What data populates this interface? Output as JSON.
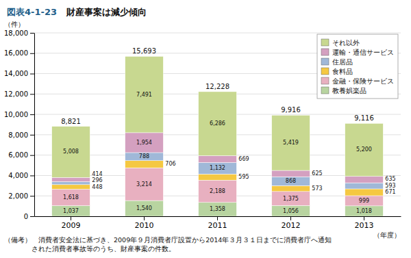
{
  "chart_data": {
    "type": "bar",
    "stacked": true,
    "title": "財産事案は減少傾向",
    "annotations": [
      "図表4-1-23",
      "（備考）　消費者安全法に基づき、2009年９月消費者庁設置から2014年３月３１日までに消費者庁へ通知\n　　　　された消費者事故等のうち、財産事案の件数。"
    ],
    "xlabel": "（年度）",
    "ylabel": "（件）",
    "categories": [
      "2009",
      "2010",
      "2011",
      "2012",
      "2013"
    ],
    "series": [
      {
        "name": "教養娯楽品",
        "color": "#b8d4a0",
        "values": [
          1037,
          1540,
          1358,
          1056,
          1018
        ],
        "value_labels": [
          "1,037",
          "1,540",
          "1,358",
          "1,056",
          "1,018"
        ]
      },
      {
        "name": "金融・保険サービス",
        "color": "#e8b0c0",
        "values": [
          1618,
          3214,
          2188,
          1375,
          999
        ],
        "value_labels": [
          "1,618",
          "3,214",
          "2,188",
          "1,375",
          "999"
        ]
      },
      {
        "name": "食料品",
        "color": "#f5c842",
        "values": [
          448,
          706,
          595,
          573,
          671
        ],
        "value_labels": [
          "448",
          "706",
          "595",
          "573",
          "671"
        ]
      },
      {
        "name": "住居品",
        "color": "#a0b8d8",
        "values": [
          296,
          788,
          1132,
          868,
          593
        ],
        "value_labels": [
          "296",
          "788",
          "1,132",
          "868",
          "593"
        ]
      },
      {
        "name": "運輸・通信サービス",
        "color": "#d4a0c0",
        "values": [
          414,
          1954,
          669,
          625,
          635
        ],
        "value_labels": [
          "414",
          "1,954",
          "669",
          "625",
          "635"
        ]
      },
      {
        "name": "それ以外",
        "color": "#c8d890",
        "values": [
          5008,
          7491,
          6286,
          5419,
          5200
        ],
        "value_labels": [
          "5,008",
          "7,491",
          "6,286",
          "5,419",
          "5,200"
        ]
      }
    ],
    "totals": [
      8821,
      15693,
      12228,
      9916,
      9116
    ],
    "total_labels": [
      "8,821",
      "15,693",
      "12,228",
      "9,916",
      "9,116"
    ],
    "ylim": [
      0,
      18000
    ],
    "yticks": [
      0,
      {
        "value": 2000,
        "label": "2,000"
      },
      {
        "value": 4000,
        "label": "4,000"
      },
      {
        "value": 6000,
        "label": "6,000"
      },
      {
        "value": 8000,
        "label": "8,000"
      },
      {
        "value": 10000,
        "label": "10,000"
      },
      {
        "value": 12000,
        "label": "12,000"
      },
      {
        "value": 14000,
        "label": "14,000"
      },
      {
        "value": 16000,
        "label": "16,000"
      },
      {
        "value": 18000,
        "label": "18,000"
      }
    ],
    "grid": true,
    "legend": "upper right",
    "data_labels": true
  }
}
